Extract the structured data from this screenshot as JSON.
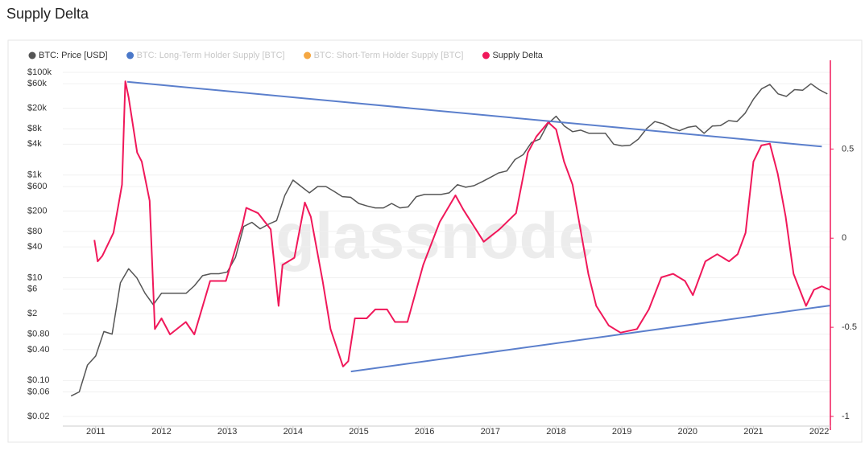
{
  "chart_data": {
    "type": "line",
    "title": "Supply Delta",
    "watermark": "glassnode",
    "log_y": true,
    "grid": true,
    "xlim": [
      2010.5,
      2022.17
    ],
    "xticks": [
      2011,
      2012,
      2013,
      2014,
      2015,
      2016,
      2017,
      2018,
      2019,
      2020,
      2021,
      2022
    ],
    "ylim": [
      0.02,
      100000
    ],
    "yticks": [
      {
        "value": 100000,
        "label": "$100k"
      },
      {
        "value": 60000,
        "label": "$60k"
      },
      {
        "value": 20000,
        "label": "$20k"
      },
      {
        "value": 8000,
        "label": "$8k"
      },
      {
        "value": 4000,
        "label": "$4k"
      },
      {
        "value": 1000,
        "label": "$1k"
      },
      {
        "value": 600,
        "label": "$600"
      },
      {
        "value": 200,
        "label": "$200"
      },
      {
        "value": 80,
        "label": "$80"
      },
      {
        "value": 40,
        "label": "$40"
      },
      {
        "value": 10,
        "label": "$10"
      },
      {
        "value": 6,
        "label": "$6"
      },
      {
        "value": 2,
        "label": "$2"
      },
      {
        "value": 0.8,
        "label": "$0.80"
      },
      {
        "value": 0.4,
        "label": "$0.40"
      },
      {
        "value": 0.1,
        "label": "$0.10"
      },
      {
        "value": 0.06,
        "label": "$0.06"
      },
      {
        "value": 0.02,
        "label": "$0.02"
      }
    ],
    "y2lim": [
      -1,
      0.93
    ],
    "y2ticks": [
      0.5,
      0,
      -0.5,
      -1
    ],
    "y2_color": "#f0185a",
    "series": [
      {
        "name": "BTC: Price [USD]",
        "color": "#555555",
        "axis": "y",
        "visible": true,
        "x": [
          2010.625,
          2010.75,
          2010.875,
          2011,
          2011.125,
          2011.25,
          2011.375,
          2011.5,
          2011.625,
          2011.75,
          2011.875,
          2012,
          2012.125,
          2012.25,
          2012.375,
          2012.5,
          2012.625,
          2012.75,
          2012.875,
          2013,
          2013.125,
          2013.25,
          2013.375,
          2013.5,
          2013.625,
          2013.75,
          2013.875,
          2014,
          2014.125,
          2014.25,
          2014.375,
          2014.5,
          2014.625,
          2014.75,
          2014.875,
          2015,
          2015.125,
          2015.25,
          2015.375,
          2015.5,
          2015.625,
          2015.75,
          2015.875,
          2016,
          2016.125,
          2016.25,
          2016.375,
          2016.5,
          2016.625,
          2016.75,
          2016.875,
          2017,
          2017.125,
          2017.25,
          2017.375,
          2017.5,
          2017.625,
          2017.75,
          2017.875,
          2018,
          2018.125,
          2018.25,
          2018.375,
          2018.5,
          2018.625,
          2018.75,
          2018.875,
          2019,
          2019.125,
          2019.25,
          2019.375,
          2019.5,
          2019.625,
          2019.75,
          2019.875,
          2020,
          2020.125,
          2020.25,
          2020.375,
          2020.5,
          2020.625,
          2020.75,
          2020.875,
          2021,
          2021.125,
          2021.25,
          2021.375,
          2021.5,
          2021.625,
          2021.75,
          2021.875,
          2022,
          2022.125
        ],
        "values": [
          0.05,
          0.06,
          0.2,
          0.3,
          0.9,
          0.8,
          8,
          15,
          10,
          5,
          3,
          5,
          5,
          5,
          5,
          7,
          11,
          12,
          12,
          13,
          25,
          100,
          120,
          90,
          110,
          130,
          400,
          800,
          600,
          450,
          600,
          600,
          480,
          380,
          370,
          280,
          250,
          230,
          230,
          280,
          230,
          240,
          380,
          420,
          420,
          420,
          450,
          650,
          580,
          620,
          740,
          900,
          1100,
          1200,
          2000,
          2500,
          4300,
          5000,
          10000,
          14000,
          9000,
          7000,
          7500,
          6500,
          6500,
          6500,
          4000,
          3700,
          3800,
          5000,
          8000,
          11000,
          10000,
          8300,
          7300,
          8500,
          9000,
          6500,
          9000,
          9200,
          11500,
          11000,
          16000,
          30000,
          48000,
          58000,
          38000,
          34000,
          46000,
          45000,
          60000,
          46000,
          38000
        ]
      },
      {
        "name": "BTC: Long-Term Holder Supply [BTC]",
        "color": "#4a78c9",
        "visible": false
      },
      {
        "name": "BTC: Short-Term Holder Supply [BTC]",
        "color": "#f5a742",
        "visible": false
      },
      {
        "name": "Supply Delta",
        "color": "#f0185a",
        "axis": "y2",
        "visible": true,
        "x": [
          2010.98,
          2011.03,
          2011.1,
          2011.27,
          2011.4,
          2011.45,
          2011.5,
          2011.63,
          2011.7,
          2011.82,
          2011.9,
          2012,
          2012.13,
          2012.37,
          2012.5,
          2012.74,
          2012.98,
          2013.23,
          2013.29,
          2013.47,
          2013.66,
          2013.78,
          2013.84,
          2014.02,
          2014.18,
          2014.27,
          2014.45,
          2014.57,
          2014.76,
          2014.84,
          2014.94,
          2015.12,
          2015.25,
          2015.43,
          2015.55,
          2015.74,
          2015.86,
          2015.98,
          2016.23,
          2016.47,
          2016.59,
          2016.78,
          2016.9,
          2017.14,
          2017.39,
          2017.57,
          2017.7,
          2017.88,
          2018,
          2018.12,
          2018.25,
          2018.37,
          2018.49,
          2018.61,
          2018.8,
          2018.98,
          2019.23,
          2019.41,
          2019.6,
          2019.78,
          2019.96,
          2020.08,
          2020.27,
          2020.45,
          2020.63,
          2020.76,
          2020.88,
          2021,
          2021.12,
          2021.25,
          2021.37,
          2021.49,
          2021.61,
          2021.8,
          2021.92,
          2022.04,
          2022.16
        ],
        "values": [
          -0.01,
          -0.13,
          -0.1,
          0.03,
          0.3,
          0.88,
          0.79,
          0.48,
          0.43,
          0.21,
          -0.51,
          -0.45,
          -0.54,
          -0.47,
          -0.54,
          -0.24,
          -0.24,
          0.07,
          0.17,
          0.14,
          0.05,
          -0.38,
          -0.15,
          -0.11,
          0.2,
          0.12,
          -0.24,
          -0.51,
          -0.72,
          -0.69,
          -0.45,
          -0.45,
          -0.4,
          -0.4,
          -0.47,
          -0.47,
          -0.31,
          -0.15,
          0.09,
          0.24,
          0.16,
          0.05,
          -0.02,
          0.05,
          0.14,
          0.48,
          0.57,
          0.65,
          0.61,
          0.43,
          0.3,
          0.05,
          -0.2,
          -0.38,
          -0.49,
          -0.53,
          -0.51,
          -0.4,
          -0.22,
          -0.2,
          -0.24,
          -0.32,
          -0.13,
          -0.09,
          -0.13,
          -0.09,
          0.03,
          0.43,
          0.52,
          0.53,
          0.36,
          0.12,
          -0.2,
          -0.38,
          -0.29,
          -0.27,
          -0.29
        ]
      }
    ],
    "trend_lines": [
      {
        "color": "#5b7fcc",
        "axis": "y2",
        "x": [
          2011.48,
          2022.04
        ],
        "values": [
          0.877,
          0.514
        ]
      },
      {
        "color": "#5b7fcc",
        "axis": "y2",
        "x": [
          2014.88,
          2022.16
        ],
        "values": [
          -0.748,
          -0.378
        ]
      }
    ]
  }
}
